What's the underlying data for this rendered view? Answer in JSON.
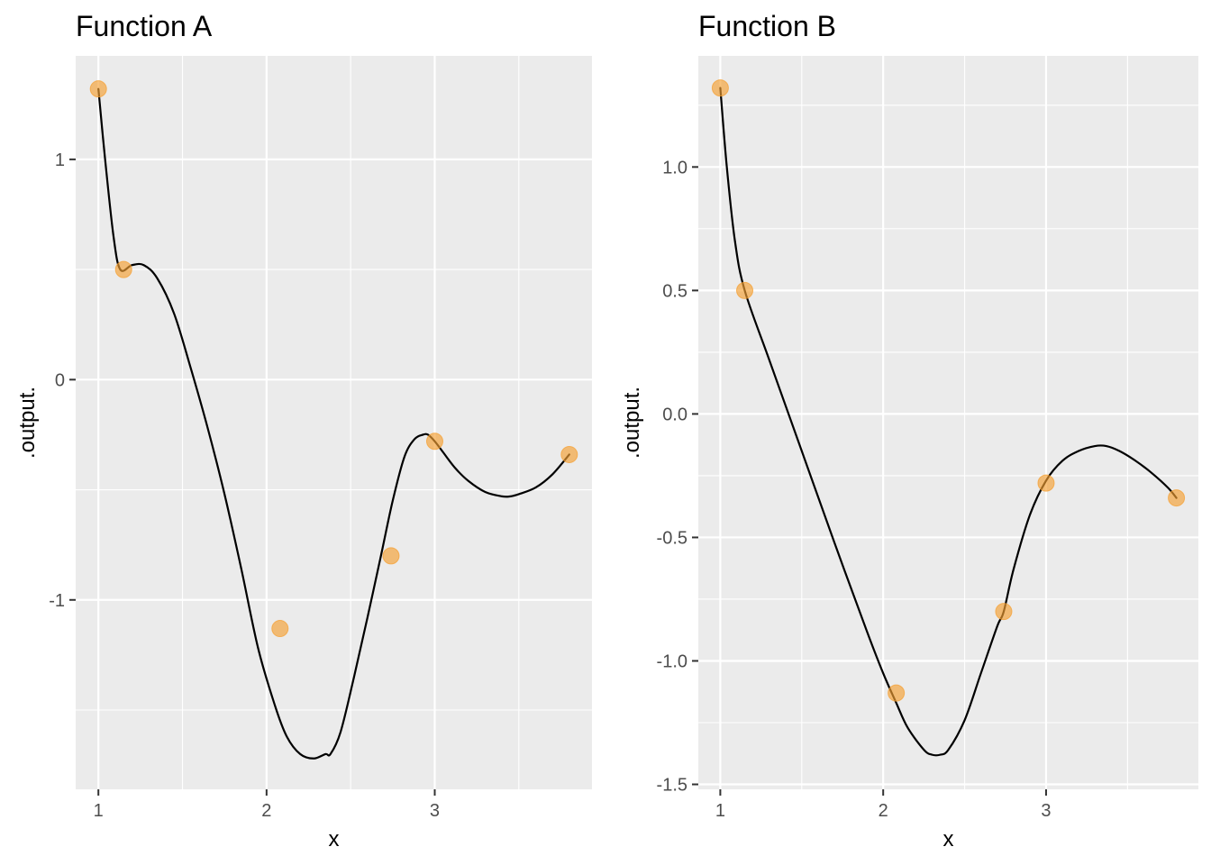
{
  "chart_data": [
    {
      "type": "line",
      "title": "Function A",
      "xlabel": "x",
      "ylabel": ".output.",
      "xlim": [
        0.865,
        3.935
      ],
      "ylim": [
        -1.86,
        1.47
      ],
      "x_ticks": [
        1,
        2,
        3
      ],
      "x_tick_labels": [
        "1",
        "2",
        "3"
      ],
      "x_minor_ticks": [
        1.5,
        2.5,
        3.5
      ],
      "y_ticks": [
        -1,
        0,
        1
      ],
      "y_tick_labels": [
        "-1",
        "0",
        "1"
      ],
      "y_minor_ticks": [
        -1.5,
        -0.5,
        0.5
      ],
      "grid": true,
      "legend": "none",
      "series": [
        {
          "kind": "line",
          "color": "#000000",
          "x": [
            1.0,
            1.04,
            1.09,
            1.13,
            1.2,
            1.27,
            1.35,
            1.45,
            1.55,
            1.65,
            1.75,
            1.85,
            1.95,
            2.05,
            2.12,
            2.2,
            2.28,
            2.35,
            2.38,
            2.44,
            2.52,
            2.6,
            2.68,
            2.75,
            2.82,
            2.88,
            2.93,
            2.96,
            3.0,
            3.05,
            3.12,
            3.2,
            3.3,
            3.4,
            3.45,
            3.5,
            3.6,
            3.7,
            3.8
          ],
          "y": [
            1.32,
            1.0,
            0.65,
            0.5,
            0.52,
            0.52,
            0.46,
            0.3,
            0.05,
            -0.22,
            -0.52,
            -0.86,
            -1.22,
            -1.48,
            -1.62,
            -1.7,
            -1.72,
            -1.7,
            -1.7,
            -1.6,
            -1.35,
            -1.08,
            -0.8,
            -0.55,
            -0.35,
            -0.27,
            -0.25,
            -0.25,
            -0.28,
            -0.33,
            -0.4,
            -0.46,
            -0.51,
            -0.53,
            -0.53,
            -0.52,
            -0.49,
            -0.43,
            -0.34
          ]
        },
        {
          "kind": "points",
          "color": "#F5A033",
          "x": [
            1.0,
            1.15,
            2.08,
            2.74,
            3.0,
            3.8
          ],
          "y": [
            1.32,
            0.5,
            -1.13,
            -0.8,
            -0.28,
            -0.34
          ]
        }
      ]
    },
    {
      "type": "line",
      "title": "Function B",
      "xlabel": "x",
      "ylabel": ".output.",
      "xlim": [
        0.865,
        3.935
      ],
      "ylim": [
        -1.52,
        1.45
      ],
      "x_ticks": [
        1,
        2,
        3
      ],
      "x_tick_labels": [
        "1",
        "2",
        "3"
      ],
      "x_minor_ticks": [
        1.5,
        2.5,
        3.5
      ],
      "y_ticks": [
        -1.5,
        -1.0,
        -0.5,
        0.0,
        0.5,
        1.0
      ],
      "y_tick_labels": [
        "-1.5",
        "-1.0",
        "-0.5",
        "0.0",
        "0.5",
        "1.0"
      ],
      "y_minor_ticks": [
        -1.25,
        -0.75,
        -0.25,
        0.25,
        0.75,
        1.25
      ],
      "grid": true,
      "legend": "none",
      "series": [
        {
          "kind": "line",
          "color": "#000000",
          "x": [
            1.0,
            1.04,
            1.09,
            1.15,
            1.3,
            1.5,
            1.7,
            1.9,
            2.0,
            2.08,
            2.15,
            2.25,
            2.3,
            2.35,
            2.4,
            2.5,
            2.6,
            2.7,
            2.74,
            2.8,
            2.9,
            3.0,
            3.1,
            3.2,
            3.3,
            3.37,
            3.45,
            3.55,
            3.65,
            3.75,
            3.8
          ],
          "y": [
            1.32,
            1.0,
            0.7,
            0.5,
            0.22,
            -0.15,
            -0.52,
            -0.88,
            -1.05,
            -1.17,
            -1.27,
            -1.36,
            -1.38,
            -1.38,
            -1.36,
            -1.24,
            -1.05,
            -0.86,
            -0.8,
            -0.63,
            -0.41,
            -0.27,
            -0.19,
            -0.15,
            -0.13,
            -0.13,
            -0.15,
            -0.19,
            -0.24,
            -0.3,
            -0.34
          ]
        },
        {
          "kind": "points",
          "color": "#F5A033",
          "x": [
            1.0,
            1.15,
            2.08,
            2.74,
            3.0,
            3.8
          ],
          "y": [
            1.32,
            0.5,
            -1.13,
            -0.8,
            -0.28,
            -0.34
          ]
        }
      ]
    }
  ]
}
